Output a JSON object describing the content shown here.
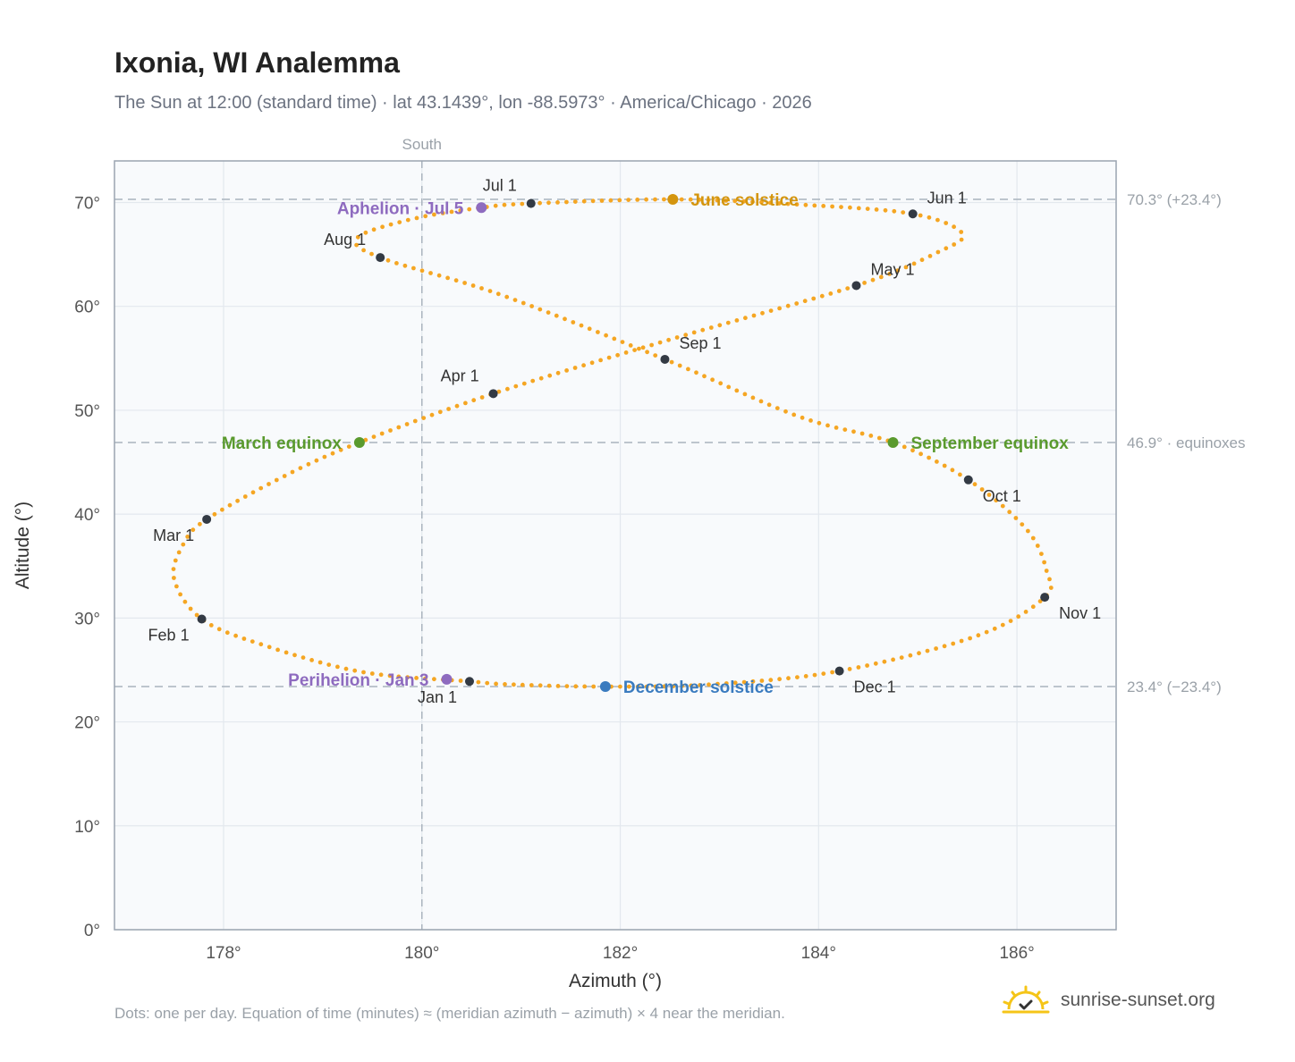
{
  "header": {
    "title": "Ixonia, WI Analemma",
    "subtitle": "The Sun at 12:00 (standard time) · lat 43.1439°, lon -88.5973° · America/Chicago · 2026"
  },
  "footer": {
    "note": "Dots: one per day. Equation of time (minutes) ≈ (meridian azimuth − azimuth) × 4 near the meridian.",
    "brand": "sunrise-sunset.org",
    "brand_icon": "sun-logo-icon"
  },
  "colors": {
    "path": "#F5A623",
    "month_marker": "#333a44",
    "solstice_june": "#d4950e",
    "solstice_december": "#3a7bbf",
    "equinox": "#5a9a2e",
    "apsis": "#8e6bbf",
    "reference": "#a9b3bd",
    "plot_bg": "#f8fafc",
    "grid": "#e3e8ee",
    "border": "#9aa4b0"
  },
  "chart_data": {
    "type": "scatter",
    "title": "Ixonia, WI Analemma",
    "xlabel": "Azimuth (°)",
    "ylabel": "Altitude (°)",
    "xlim": [
      176.9,
      187.0
    ],
    "ylim": [
      0,
      74
    ],
    "x_ticks": [
      {
        "value": 178,
        "label": "178°"
      },
      {
        "value": 180,
        "label": "180°"
      },
      {
        "value": 182,
        "label": "182°"
      },
      {
        "value": 184,
        "label": "184°"
      },
      {
        "value": 186,
        "label": "186°"
      }
    ],
    "y_ticks": [
      {
        "value": 0,
        "label": "0°"
      },
      {
        "value": 10,
        "label": "10°"
      },
      {
        "value": 20,
        "label": "20°"
      },
      {
        "value": 30,
        "label": "30°"
      },
      {
        "value": 40,
        "label": "40°"
      },
      {
        "value": 50,
        "label": "50°"
      },
      {
        "value": 60,
        "label": "60°"
      },
      {
        "value": 70,
        "label": "70°"
      }
    ],
    "grid": true,
    "meridian": {
      "azimuth": 180,
      "label": "South"
    },
    "reference_lines": [
      {
        "altitude": 70.3,
        "label": "70.3° (+23.4°)"
      },
      {
        "altitude": 46.9,
        "label": "46.9° · equinoxes"
      },
      {
        "altitude": 23.4,
        "label": "23.4° (−23.4°)"
      }
    ],
    "path_keypoints": [
      {
        "azimuth": 180.48,
        "altitude": 23.9
      },
      {
        "azimuth": 179.4,
        "altitude": 24.8
      },
      {
        "azimuth": 178.4,
        "altitude": 27.4
      },
      {
        "azimuth": 177.78,
        "altitude": 29.9
      },
      {
        "azimuth": 177.5,
        "altitude": 33.8
      },
      {
        "azimuth": 177.6,
        "altitude": 37.2
      },
      {
        "azimuth": 177.83,
        "altitude": 39.5
      },
      {
        "azimuth": 178.6,
        "altitude": 43.6
      },
      {
        "azimuth": 179.37,
        "altitude": 46.9
      },
      {
        "azimuth": 180.72,
        "altitude": 51.6
      },
      {
        "azimuth": 182.5,
        "altitude": 56.8
      },
      {
        "azimuth": 184.38,
        "altitude": 62.0
      },
      {
        "azimuth": 185.2,
        "altitude": 65.2
      },
      {
        "azimuth": 185.45,
        "altitude": 67.0
      },
      {
        "azimuth": 184.95,
        "altitude": 68.9
      },
      {
        "azimuth": 183.8,
        "altitude": 69.8
      },
      {
        "azimuth": 182.53,
        "altitude": 70.3
      },
      {
        "azimuth": 181.1,
        "altitude": 69.9
      },
      {
        "azimuth": 180.6,
        "altitude": 69.5
      },
      {
        "azimuth": 179.9,
        "altitude": 68.4
      },
      {
        "azimuth": 179.35,
        "altitude": 66.6
      },
      {
        "azimuth": 179.58,
        "altitude": 64.7
      },
      {
        "azimuth": 180.8,
        "altitude": 61.1
      },
      {
        "azimuth": 182.45,
        "altitude": 54.9
      },
      {
        "azimuth": 183.8,
        "altitude": 49.4
      },
      {
        "azimuth": 184.75,
        "altitude": 46.9
      },
      {
        "azimuth": 185.51,
        "altitude": 43.3
      },
      {
        "azimuth": 186.1,
        "altitude": 38.5
      },
      {
        "azimuth": 186.3,
        "altitude": 34.5
      },
      {
        "azimuth": 186.28,
        "altitude": 32.0
      },
      {
        "azimuth": 185.6,
        "altitude": 28.3
      },
      {
        "azimuth": 184.21,
        "altitude": 24.9
      },
      {
        "azimuth": 182.9,
        "altitude": 23.6
      },
      {
        "azimuth": 181.85,
        "altitude": 23.4
      },
      {
        "azimuth": 180.9,
        "altitude": 23.6
      },
      {
        "azimuth": 180.48,
        "altitude": 23.9
      }
    ],
    "month_markers": [
      {
        "label": "Jan 1",
        "azimuth": 180.48,
        "altitude": 23.9,
        "anchor": "below-left"
      },
      {
        "label": "Feb 1",
        "azimuth": 177.78,
        "altitude": 29.9,
        "anchor": "below-left"
      },
      {
        "label": "Mar 1",
        "azimuth": 177.83,
        "altitude": 39.5,
        "anchor": "below-left"
      },
      {
        "label": "Apr 1",
        "azimuth": 180.72,
        "altitude": 51.6,
        "anchor": "above-left"
      },
      {
        "label": "May 1",
        "azimuth": 184.38,
        "altitude": 62.0,
        "anchor": "above-right"
      },
      {
        "label": "Jun 1",
        "azimuth": 184.95,
        "altitude": 68.9,
        "anchor": "above-right"
      },
      {
        "label": "Jul 1",
        "azimuth": 181.1,
        "altitude": 69.9,
        "anchor": "above-left"
      },
      {
        "label": "Aug 1",
        "azimuth": 179.58,
        "altitude": 64.7,
        "anchor": "above-left"
      },
      {
        "label": "Sep 1",
        "azimuth": 182.45,
        "altitude": 54.9,
        "anchor": "above-right"
      },
      {
        "label": "Oct 1",
        "azimuth": 185.51,
        "altitude": 43.3,
        "anchor": "below-right"
      },
      {
        "label": "Nov 1",
        "azimuth": 186.28,
        "altitude": 32.0,
        "anchor": "below-right"
      },
      {
        "label": "Dec 1",
        "azimuth": 184.21,
        "altitude": 24.9,
        "anchor": "below-right"
      }
    ],
    "events": [
      {
        "label": "June solstice",
        "azimuth": 182.53,
        "altitude": 70.3,
        "kind": "solstice_june",
        "side": "right"
      },
      {
        "label": "December solstice",
        "azimuth": 181.85,
        "altitude": 23.4,
        "kind": "solstice_december",
        "side": "right"
      },
      {
        "label": "March equinox",
        "azimuth": 179.37,
        "altitude": 46.9,
        "kind": "equinox",
        "side": "left"
      },
      {
        "label": "September equinox",
        "azimuth": 184.75,
        "altitude": 46.9,
        "kind": "equinox",
        "side": "right"
      },
      {
        "label": "Aphelion · Jul 5",
        "azimuth": 180.6,
        "altitude": 69.5,
        "kind": "apsis",
        "side": "left"
      },
      {
        "label": "Perihelion · Jan 3",
        "azimuth": 180.25,
        "altitude": 24.1,
        "kind": "apsis",
        "side": "left"
      }
    ]
  }
}
